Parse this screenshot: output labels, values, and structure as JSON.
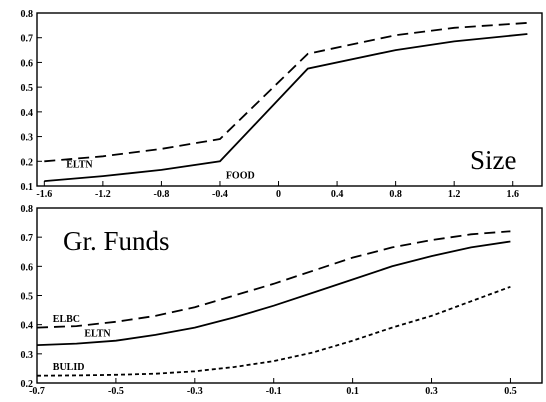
{
  "chart_data": [
    {
      "type": "line",
      "title": "Size",
      "xlabel": "",
      "ylabel": "",
      "xlim": [
        -1.65,
        1.8
      ],
      "ylim": [
        0.1,
        0.8
      ],
      "x_ticks": [
        "-1.6",
        "-1.2",
        "-0.8",
        "-0.4",
        "0",
        "0.4",
        "0.8",
        "1.2",
        "1.6"
      ],
      "y_ticks": [
        "0.1",
        "0.2",
        "0.3",
        "0.4",
        "0.5",
        "0.6",
        "0.7",
        "0.8"
      ],
      "grid": false,
      "series": [
        {
          "name": "ELTN",
          "style": "dashed",
          "x": [
            -1.6,
            -1.2,
            -0.8,
            -0.4,
            0.2,
            0.8,
            1.2,
            1.7
          ],
          "y": [
            0.2,
            0.22,
            0.25,
            0.29,
            0.635,
            0.71,
            0.74,
            0.76
          ]
        },
        {
          "name": "",
          "style": "solid",
          "x": [
            -1.6,
            -1.2,
            -0.8,
            -0.4,
            0.2,
            0.8,
            1.2,
            1.7
          ],
          "y": [
            0.12,
            0.14,
            0.165,
            0.2,
            0.575,
            0.65,
            0.685,
            0.715
          ]
        }
      ],
      "annotations": [
        {
          "text": "ELTN",
          "x": -1.45,
          "y": 0.175
        },
        {
          "text": "FOOD",
          "x": -0.36,
          "y": 0.13
        }
      ]
    },
    {
      "type": "line",
      "title": "Gr. Funds",
      "xlabel": "",
      "ylabel": "",
      "xlim": [
        -0.7,
        0.58
      ],
      "ylim": [
        0.2,
        0.8
      ],
      "x_ticks": [
        "-0.7",
        "-0.5",
        "-0.3",
        "-0.1",
        "0.1",
        "0.3",
        "0.5"
      ],
      "y_ticks": [
        "0.2",
        "0.3",
        "0.4",
        "0.5",
        "0.6",
        "0.7",
        "0.8"
      ],
      "grid": false,
      "series": [
        {
          "name": "ELBC",
          "style": "long-dash",
          "x": [
            -0.7,
            -0.6,
            -0.5,
            -0.4,
            -0.3,
            -0.2,
            -0.1,
            0,
            0.1,
            0.2,
            0.3,
            0.4,
            0.5
          ],
          "y": [
            0.39,
            0.395,
            0.41,
            0.43,
            0.46,
            0.5,
            0.54,
            0.585,
            0.63,
            0.665,
            0.69,
            0.71,
            0.72
          ]
        },
        {
          "name": "ELTN",
          "style": "solid",
          "x": [
            -0.7,
            -0.6,
            -0.5,
            -0.4,
            -0.3,
            -0.2,
            -0.1,
            0,
            0.1,
            0.2,
            0.3,
            0.4,
            0.5
          ],
          "y": [
            0.33,
            0.335,
            0.345,
            0.365,
            0.39,
            0.425,
            0.465,
            0.51,
            0.555,
            0.6,
            0.635,
            0.665,
            0.685
          ]
        },
        {
          "name": "BULID",
          "style": "short-dash",
          "x": [
            -0.7,
            -0.6,
            -0.5,
            -0.4,
            -0.3,
            -0.2,
            -0.1,
            0,
            0.1,
            0.2,
            0.3,
            0.4,
            0.5
          ],
          "y": [
            0.225,
            0.226,
            0.228,
            0.232,
            0.24,
            0.255,
            0.275,
            0.305,
            0.345,
            0.39,
            0.43,
            0.48,
            0.53
          ]
        }
      ],
      "annotations": [
        {
          "text": "ELBC",
          "x": -0.66,
          "y": 0.41
        },
        {
          "text": "ELTN",
          "x": -0.58,
          "y": 0.36
        },
        {
          "text": "BULID",
          "x": -0.66,
          "y": 0.245
        }
      ]
    }
  ]
}
